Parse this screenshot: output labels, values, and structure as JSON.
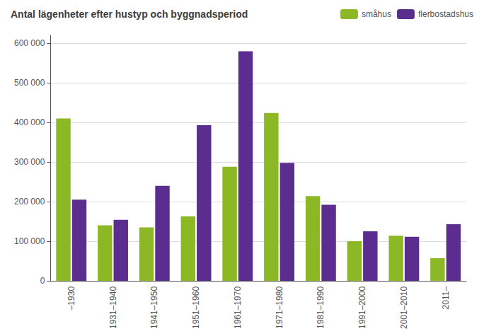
{
  "chart_data": {
    "type": "bar",
    "title": "Antal lägenheter efter hustyp och byggnadsperiod",
    "categories": [
      "–1930",
      "1931–1940",
      "1941–1950",
      "1951–1960",
      "1961–1970",
      "1971–1980",
      "1981–1990",
      "1991–2000",
      "2001–2010",
      "2011–"
    ],
    "series": [
      {
        "name": "småhus",
        "color": "#8db826",
        "values": [
          410000,
          140000,
          135000,
          163000,
          288000,
          424000,
          214000,
          100000,
          114000,
          57000
        ]
      },
      {
        "name": "flerbostadshus",
        "color": "#5b2d8e",
        "values": [
          205000,
          154000,
          240000,
          393000,
          580000,
          298000,
          192000,
          125000,
          111000,
          143000
        ]
      }
    ],
    "ylim": [
      0,
      620000
    ],
    "yticks": [
      0,
      {
        "value": 100000,
        "label": "100 000"
      },
      {
        "value": 200000,
        "label": "200 000"
      },
      {
        "value": 300000,
        "label": "300 000"
      },
      {
        "value": 400000,
        "label": "400 000"
      },
      {
        "value": 500000,
        "label": "500 000"
      },
      {
        "value": 600000,
        "label": "600 000"
      }
    ],
    "grid": true,
    "legend": "upper right"
  }
}
